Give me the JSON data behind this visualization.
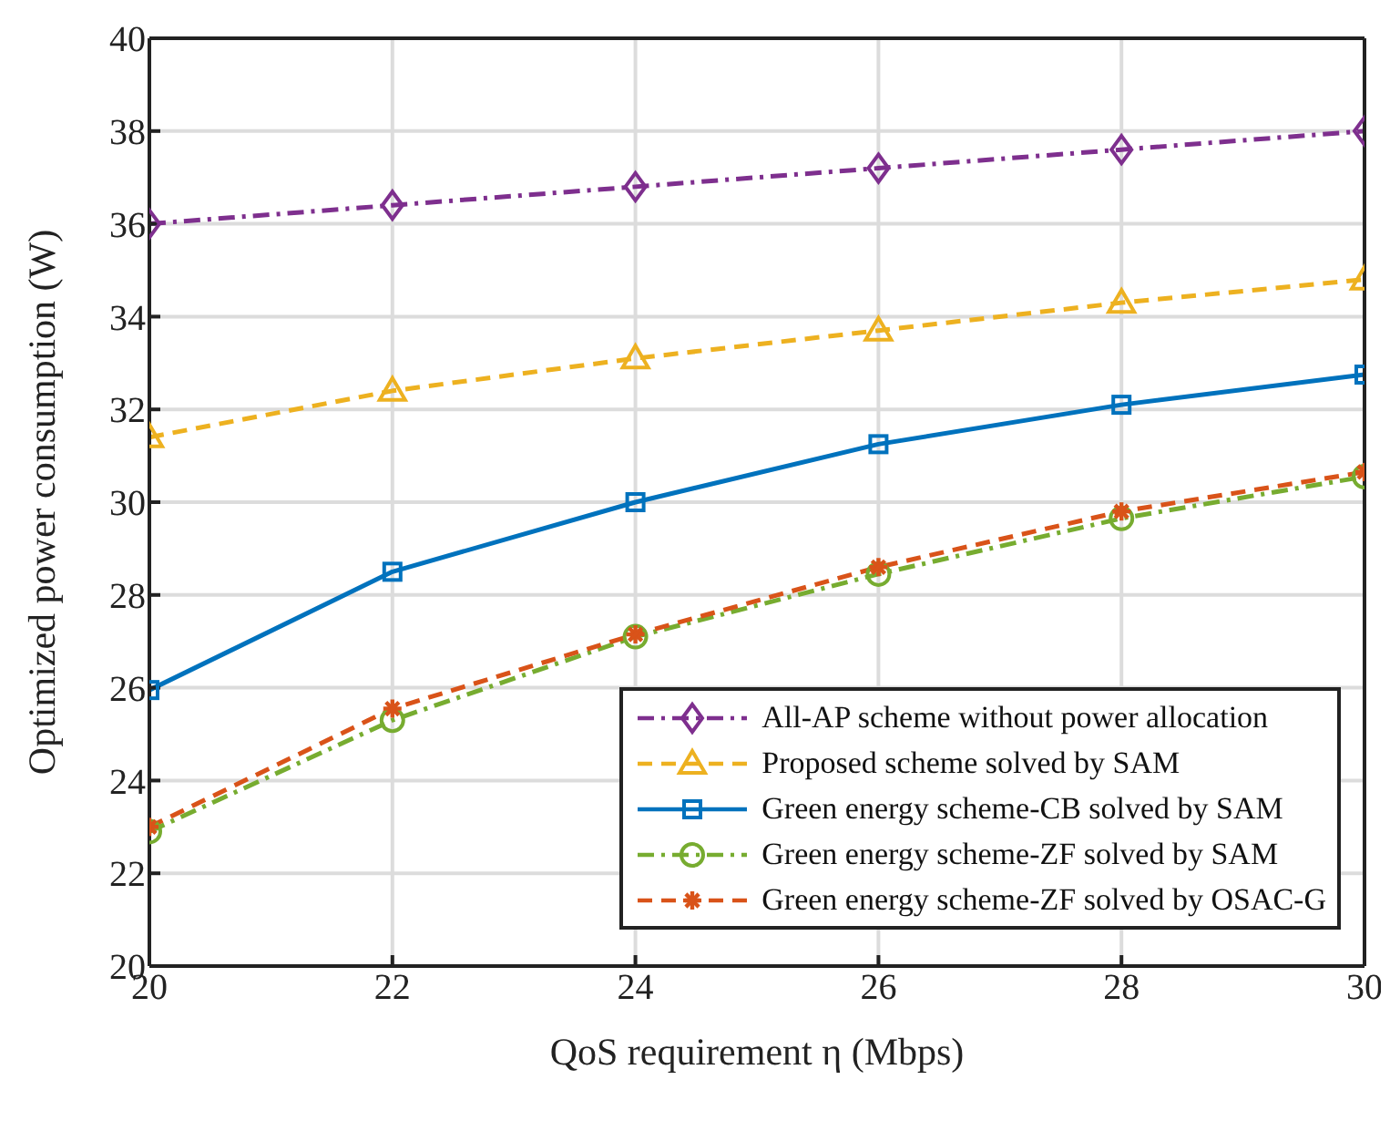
{
  "chart_data": {
    "type": "line",
    "xlabel": "QoS requirement η (Mbps)",
    "ylabel": "Optimized power consumption (W)",
    "x": [
      20,
      22,
      24,
      26,
      28,
      30
    ],
    "xlim": [
      20,
      30
    ],
    "xticks": [
      20,
      22,
      24,
      26,
      28,
      30
    ],
    "ylim": [
      20,
      40
    ],
    "yticks": [
      20,
      22,
      24,
      26,
      28,
      30,
      32,
      34,
      36,
      38,
      40
    ],
    "grid": true,
    "legend": "bottom right",
    "series": [
      {
        "name": "All-AP scheme without power allocation",
        "color": "#7e2f8e",
        "marker": "diamond",
        "line_style": "dashdot",
        "values": [
          36,
          36.4,
          36.8,
          37.2,
          37.6,
          38
        ]
      },
      {
        "name": "Proposed scheme solved by SAM",
        "color": "#edb120",
        "marker": "triangle",
        "line_style": "dashed",
        "values": [
          31.4,
          32.4,
          33.1,
          33.7,
          34.3,
          34.8
        ]
      },
      {
        "name": "Green energy scheme-CB solved by SAM",
        "color": "#0072bd",
        "marker": "square",
        "line_style": "solid",
        "values": [
          25.95,
          28.5,
          30,
          31.25,
          32.1,
          32.75
        ]
      },
      {
        "name": "Green energy scheme-ZF solved by SAM",
        "color": "#77ac30",
        "marker": "circle",
        "line_style": "dashdot",
        "values": [
          22.9,
          25.3,
          27.1,
          28.45,
          29.65,
          30.55
        ]
      },
      {
        "name": "Green energy scheme-ZF solved by OSAC-G",
        "color": "#d95319",
        "marker": "cross",
        "line_style": "dashed",
        "values": [
          23,
          25.55,
          27.15,
          28.6,
          29.8,
          30.65
        ]
      }
    ]
  }
}
